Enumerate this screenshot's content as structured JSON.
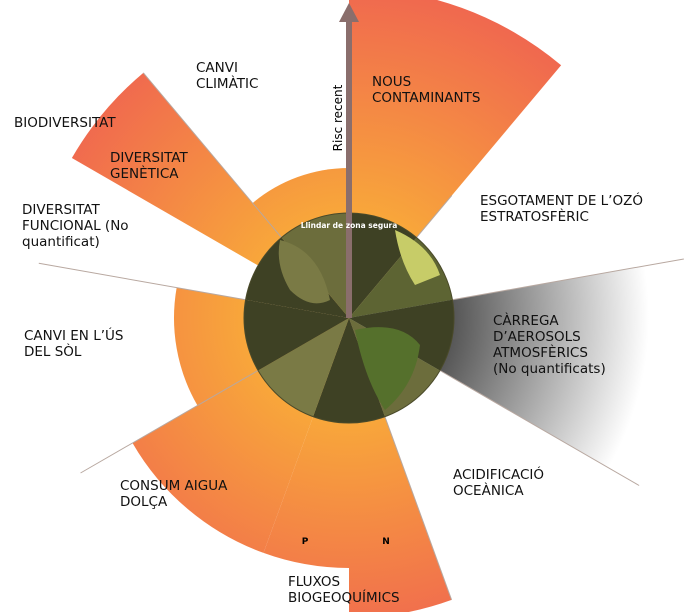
{
  "arrow_label": "Risc recent",
  "threshold_label": "Llindar de zona segura",
  "labels": [
    {
      "lines": [
        "CANVI",
        "CLIMÀTIC"
      ]
    },
    {
      "lines": [
        "NOUS",
        "CONTAMINANTS"
      ]
    },
    {
      "lines": [
        "BIODIVERSITAT"
      ]
    },
    {
      "lines": [
        "DIVERSITAT",
        "GENÈTICA"
      ]
    },
    {
      "lines": [
        "ESGOTAMENT DE L’OZÓ",
        "ESTRATOSFÈRIC"
      ]
    },
    {
      "lines": [
        "DIVERSITAT",
        "FUNCIONAL (No",
        "quantificat)"
      ]
    },
    {
      "lines": [
        "CANVI EN L’ÚS",
        "DEL SÒL"
      ]
    },
    {
      "lines": [
        "CÀRREGA",
        "D’AEROSOLS",
        "ATMOSFÈRICS",
        "(No quantificats)"
      ]
    },
    {
      "lines": [
        "CONSUM AIGUA",
        "DOLÇA"
      ]
    },
    {
      "lines": [
        "ACIDIFICACIÓ",
        "OCEÀNICA"
      ]
    },
    {
      "lines": [
        "FLUXOS",
        "BIOGEOQUÍMICS"
      ]
    }
  ],
  "markers": [
    "P",
    "N"
  ]
}
